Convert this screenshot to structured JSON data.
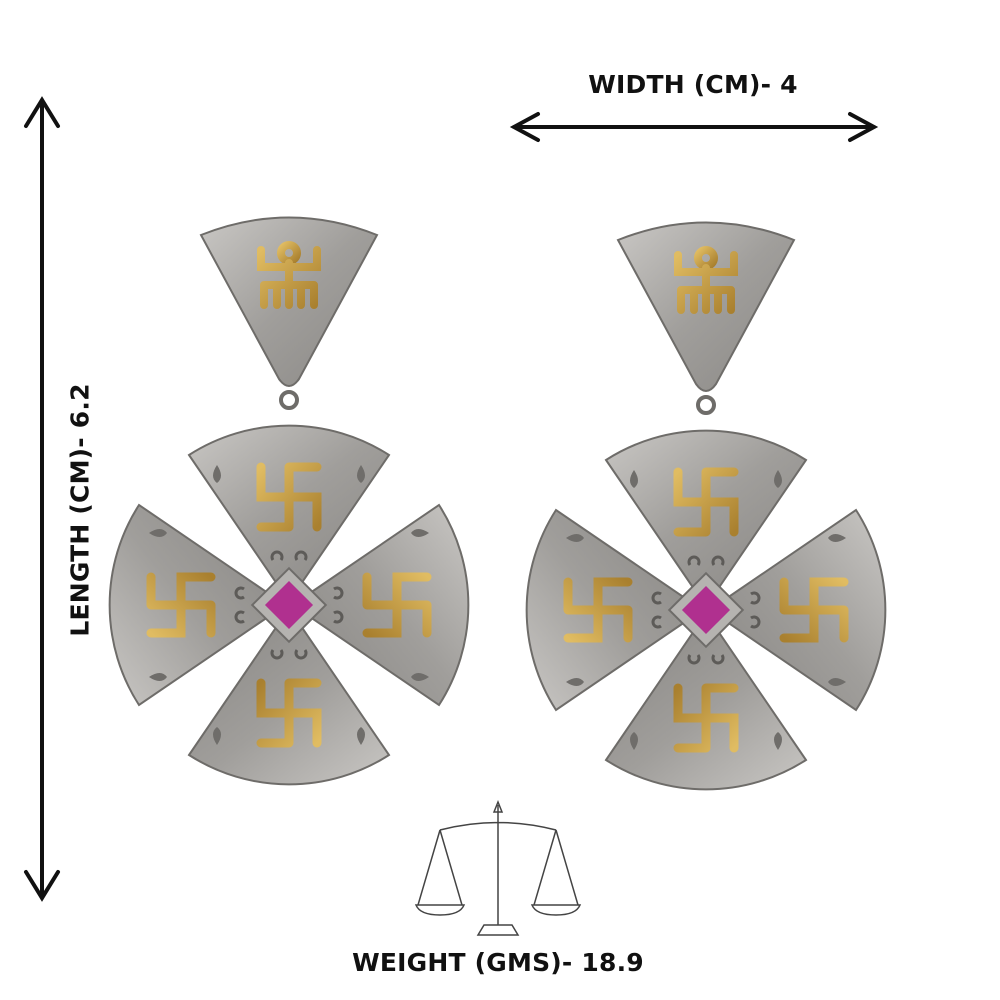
{
  "dimensions": {
    "width_label": "WIDTH (CM)- 4",
    "length_label": "LENGTH (CM)- 6.2",
    "weight_label": "WEIGHT (GMS)- 18.9"
  },
  "product": {
    "type": "earrings pair",
    "icons": [
      "double-arrow-vertical",
      "double-arrow-horizontal",
      "balance-scale-icon"
    ],
    "colors": {
      "silver": "#a9a7a4",
      "gold": "#c9a04a",
      "stone": "#b0308f"
    }
  }
}
